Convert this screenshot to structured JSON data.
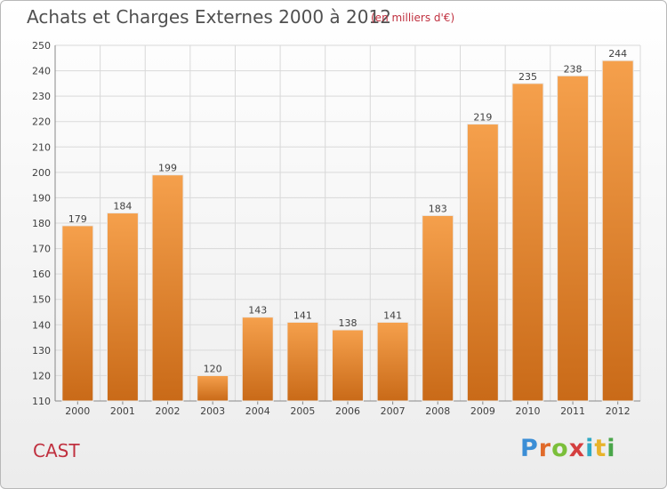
{
  "header": {
    "title": "Achats et Charges Externes 2000 à 2012",
    "subtitle": "(en milliers d'€)"
  },
  "footer": {
    "place": "CAST",
    "logo": "Proxiti"
  },
  "colors": {
    "bar_top": "#f5a04c",
    "bar_bottom": "#c96a18",
    "grid": "#d9d9d9",
    "accent": "#c0303f"
  },
  "chart_data": {
    "type": "bar",
    "title": "Achats et Charges Externes 2000 à 2012",
    "subtitle": "(en milliers d'€)",
    "categories": [
      "2000",
      "2001",
      "2002",
      "2003",
      "2004",
      "2005",
      "2006",
      "2007",
      "2008",
      "2009",
      "2010",
      "2011",
      "2012"
    ],
    "values": [
      179,
      184,
      199,
      120,
      143,
      141,
      138,
      141,
      183,
      219,
      235,
      238,
      244
    ],
    "ylim": [
      110,
      250
    ],
    "yticks": [
      110,
      120,
      130,
      140,
      150,
      160,
      170,
      180,
      190,
      200,
      210,
      220,
      230,
      240,
      250
    ],
    "grid": true,
    "data_labels": true
  }
}
